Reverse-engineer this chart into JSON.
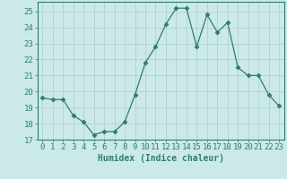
{
  "x": [
    0,
    1,
    2,
    3,
    4,
    5,
    6,
    7,
    8,
    9,
    10,
    11,
    12,
    13,
    14,
    15,
    16,
    17,
    18,
    19,
    20,
    21,
    22,
    23
  ],
  "y": [
    19.6,
    19.5,
    19.5,
    18.5,
    18.1,
    17.3,
    17.5,
    17.5,
    18.1,
    19.8,
    21.8,
    22.8,
    24.2,
    25.2,
    25.2,
    22.8,
    24.8,
    23.7,
    24.3,
    21.5,
    21.0,
    21.0,
    19.8,
    19.1
  ],
  "line_color": "#2e7d6e",
  "marker": "D",
  "marker_size": 2.5,
  "bg_color": "#cce9e9",
  "grid_color": "#aacccc",
  "xlabel": "Humidex (Indice chaleur)",
  "ylim": [
    17,
    25.6
  ],
  "xlim": [
    -0.5,
    23.5
  ],
  "yticks": [
    17,
    18,
    19,
    20,
    21,
    22,
    23,
    24,
    25
  ],
  "xticks": [
    0,
    1,
    2,
    3,
    4,
    5,
    6,
    7,
    8,
    9,
    10,
    11,
    12,
    13,
    14,
    15,
    16,
    17,
    18,
    19,
    20,
    21,
    22,
    23
  ],
  "axis_color": "#2e7d6e",
  "tick_color": "#2e7d6e",
  "label_fontsize": 7.0,
  "tick_fontsize": 6.5
}
